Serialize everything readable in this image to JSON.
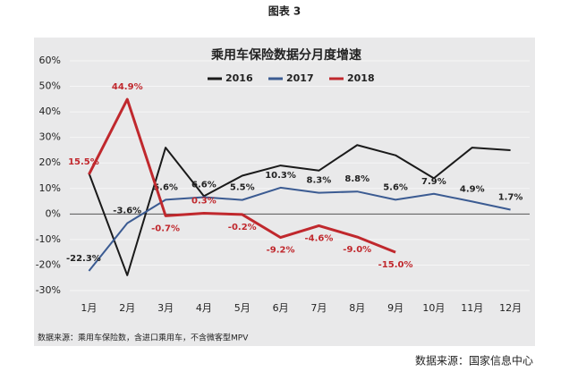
{
  "header": "图表 3",
  "chart_data": {
    "type": "line",
    "title": "乘用车保险数据分月度增速",
    "categories": [
      "1月",
      "2月",
      "3月",
      "4月",
      "5月",
      "6月",
      "7月",
      "8月",
      "9月",
      "10月",
      "11月",
      "12月"
    ],
    "series": [
      {
        "name": "2016",
        "color": "#1a1a1a",
        "values": [
          16,
          -24,
          26,
          7,
          15,
          19,
          17,
          27,
          23,
          14,
          26,
          25
        ]
      },
      {
        "name": "2017",
        "color": "#3b5b92",
        "values": [
          -22.3,
          -3.6,
          5.6,
          6.6,
          5.5,
          10.3,
          8.3,
          8.8,
          5.6,
          7.9,
          4.9,
          1.7
        ],
        "value_labels": [
          "-22.3%",
          "-3.6%",
          "5.6%",
          "6.6%",
          "5.5%",
          "10.3%",
          "8.3%",
          "8.8%",
          "5.6%",
          "7.9%",
          "4.9%",
          "1.7%"
        ]
      },
      {
        "name": "2018",
        "color": "#c0282d",
        "values": [
          15.5,
          44.9,
          -0.7,
          0.3,
          -0.2,
          -9.2,
          -4.6,
          -9.0,
          -15.0,
          null,
          null,
          null
        ],
        "value_labels": [
          "15.5%",
          "44.9%",
          "-0.7%",
          "0.3%",
          "-0.2%",
          "-9.2%",
          "-4.6%",
          "-9.0%",
          "-15.0%",
          null,
          null,
          null
        ]
      }
    ],
    "ylim": [
      -30,
      60
    ],
    "yticks": [
      {
        "value": -30,
        "label": "-30%"
      },
      {
        "value": -20,
        "label": "-20%"
      },
      {
        "value": -10,
        "label": "-10%"
      },
      {
        "value": 0,
        "label": "0%"
      },
      {
        "value": 10,
        "label": "10%"
      },
      {
        "value": 20,
        "label": "20%"
      },
      {
        "value": 30,
        "label": "30%"
      },
      {
        "value": 40,
        "label": "40%"
      },
      {
        "value": 50,
        "label": "50%"
      },
      {
        "value": 60,
        "label": "60%"
      }
    ],
    "grid": true,
    "note": "数据来源：乘用车保险数，含进口乘用车，不含微客型MPV"
  },
  "source": "数据来源：国家信息中心"
}
